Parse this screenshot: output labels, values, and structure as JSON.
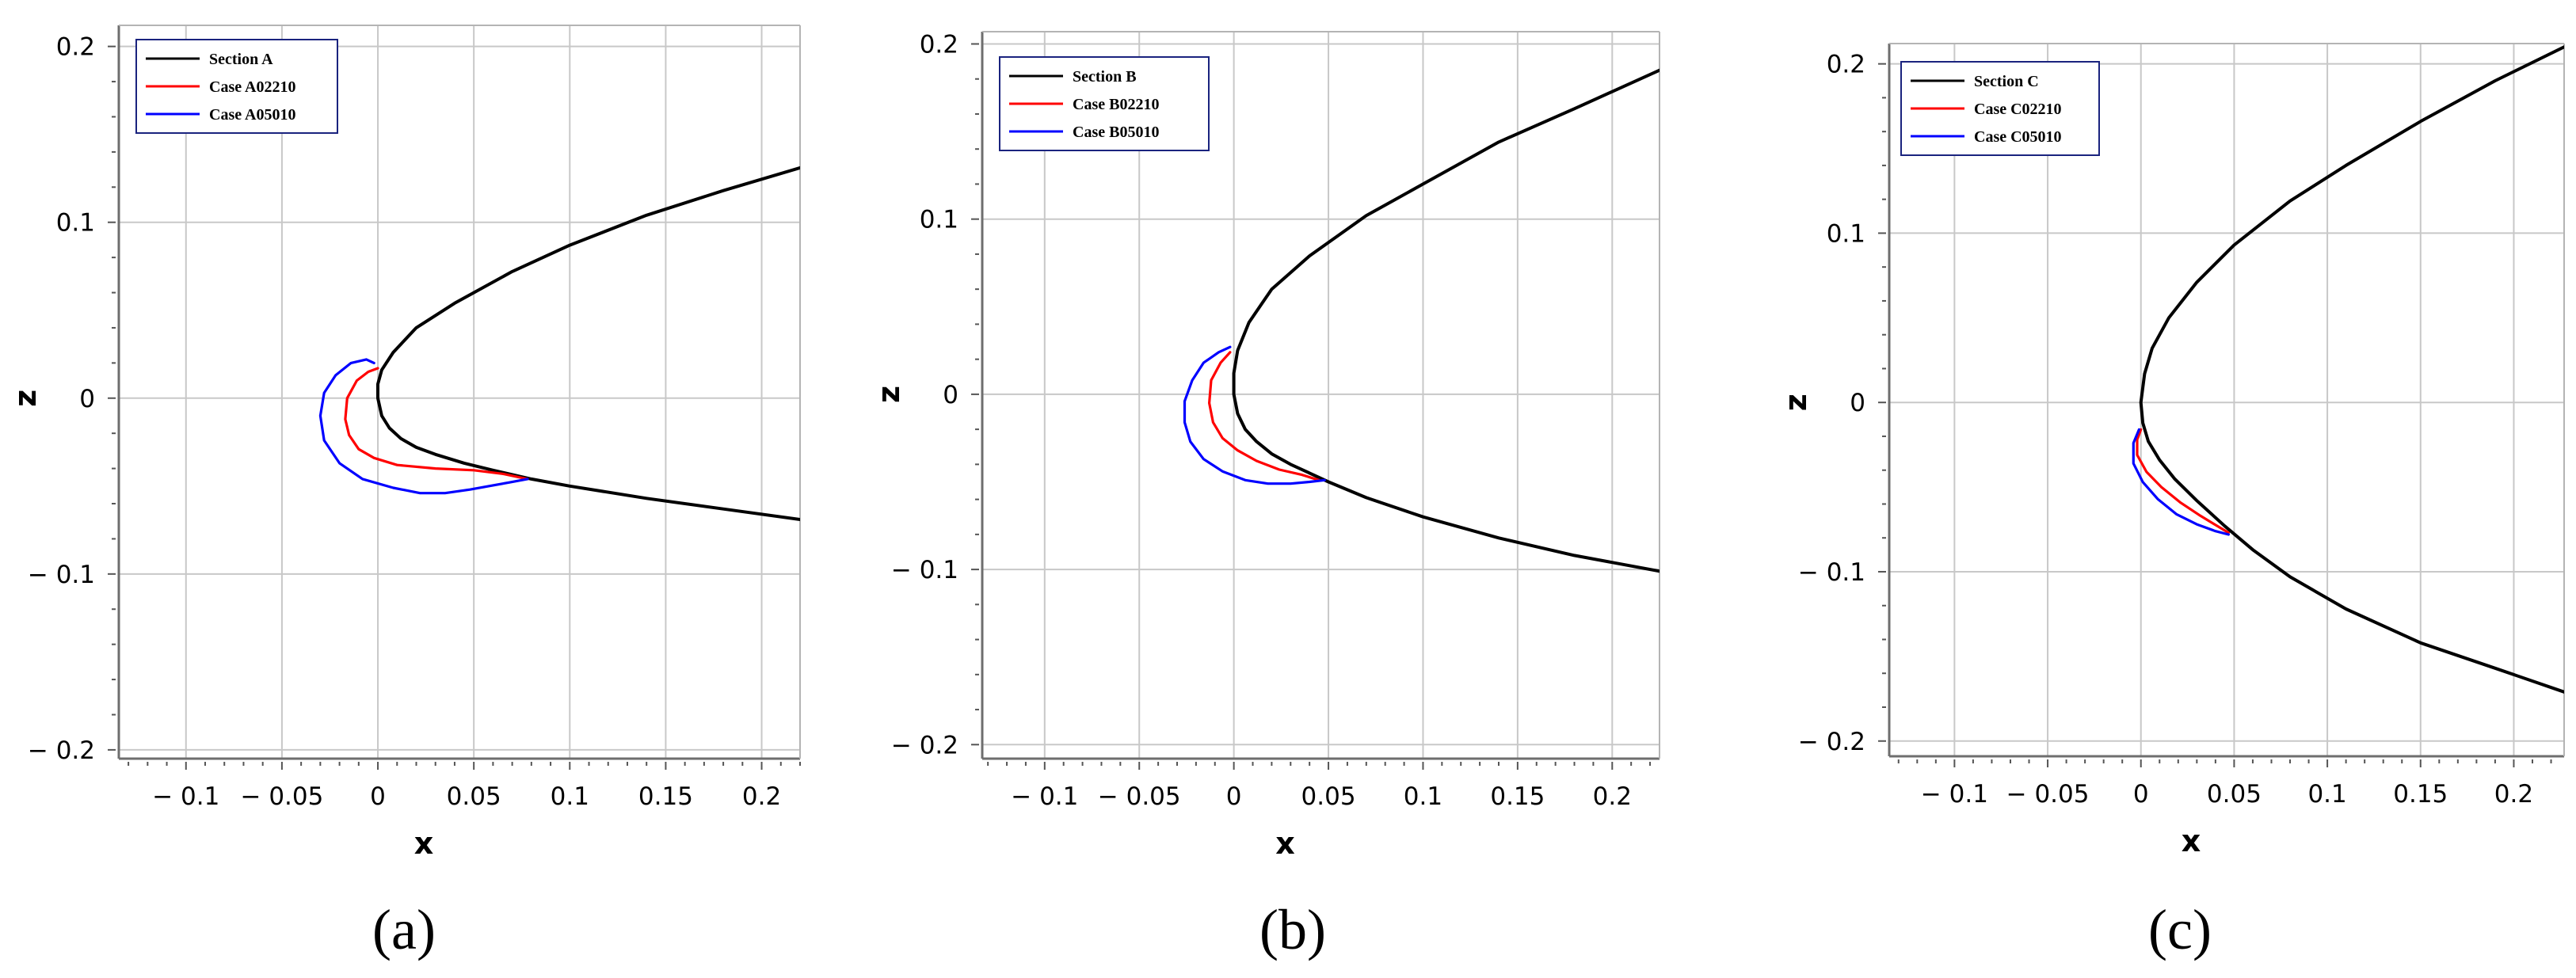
{
  "chart_data": [
    {
      "type": "line",
      "panel_label": "(a)",
      "xlabel": "x",
      "ylabel": "z",
      "xlim": [
        -0.135,
        0.22
      ],
      "ylim": [
        -0.205,
        0.212
      ],
      "x_ticks": [
        -0.1,
        -0.05,
        0,
        0.05,
        0.1,
        0.15,
        0.2
      ],
      "x_tick_labels": [
        "− 0.1",
        "− 0.05",
        "0",
        "0.05",
        "0.1",
        "0.15",
        "0.2"
      ],
      "y_ticks": [
        0.2,
        0.1,
        0,
        -0.1,
        -0.2
      ],
      "y_tick_labels": [
        "0.2",
        "0.1",
        "0",
        "− 0.1",
        "− 0.2"
      ],
      "grid": true,
      "legend_position": "top-left",
      "series": [
        {
          "name": "Section A",
          "color": "#000000",
          "x": [
            0.22,
            0.18,
            0.14,
            0.1,
            0.07,
            0.04,
            0.02,
            0.008,
            0.002,
            0.0,
            0.0,
            0.002,
            0.006,
            0.012,
            0.02,
            0.03,
            0.045,
            0.06,
            0.08,
            0.1,
            0.14,
            0.18,
            0.22
          ],
          "y": [
            0.131,
            0.118,
            0.104,
            0.087,
            0.072,
            0.054,
            0.04,
            0.026,
            0.016,
            0.008,
            0.0,
            -0.01,
            -0.017,
            -0.023,
            -0.028,
            -0.032,
            -0.037,
            -0.041,
            -0.046,
            -0.05,
            -0.057,
            -0.063,
            -0.069
          ]
        },
        {
          "name": "Case A02210",
          "color": "#ff0000",
          "x": [
            0.0,
            -0.005,
            -0.011,
            -0.016,
            -0.017,
            -0.015,
            -0.01,
            -0.002,
            0.01,
            0.03,
            0.05,
            0.065,
            0.078
          ],
          "y": [
            0.017,
            0.015,
            0.01,
            0.0,
            -0.012,
            -0.021,
            -0.029,
            -0.034,
            -0.038,
            -0.04,
            -0.041,
            -0.043,
            -0.046
          ]
        },
        {
          "name": "Case A05010",
          "color": "#0000ff",
          "x": [
            -0.002,
            -0.006,
            -0.014,
            -0.022,
            -0.028,
            -0.03,
            -0.028,
            -0.02,
            -0.008,
            0.008,
            0.022,
            0.035,
            0.048,
            0.058,
            0.068,
            0.078
          ],
          "y": [
            0.02,
            0.022,
            0.02,
            0.013,
            0.003,
            -0.01,
            -0.024,
            -0.037,
            -0.046,
            -0.051,
            -0.054,
            -0.054,
            -0.052,
            -0.05,
            -0.048,
            -0.046
          ]
        }
      ]
    },
    {
      "type": "line",
      "panel_label": "(b)",
      "xlabel": "x",
      "ylabel": "z",
      "xlim": [
        -0.133,
        0.225
      ],
      "ylim": [
        -0.208,
        0.207
      ],
      "x_ticks": [
        -0.1,
        -0.05,
        0,
        0.05,
        0.1,
        0.15,
        0.2
      ],
      "x_tick_labels": [
        "− 0.1",
        "− 0.05",
        "0",
        "0.05",
        "0.1",
        "0.15",
        "0.2"
      ],
      "y_ticks": [
        0.2,
        0.1,
        0,
        -0.1,
        -0.2
      ],
      "y_tick_labels": [
        "0.2",
        "0.1",
        "0",
        "− 0.1",
        "− 0.2"
      ],
      "grid": true,
      "legend_position": "top-left",
      "series": [
        {
          "name": "Section B",
          "color": "#000000",
          "x": [
            0.225,
            0.18,
            0.14,
            0.1,
            0.07,
            0.04,
            0.02,
            0.008,
            0.002,
            0.0,
            0.0,
            0.002,
            0.006,
            0.012,
            0.02,
            0.03,
            0.04,
            0.05,
            0.07,
            0.1,
            0.14,
            0.18,
            0.225
          ],
          "y": [
            0.185,
            0.163,
            0.144,
            0.12,
            0.102,
            0.079,
            0.06,
            0.041,
            0.025,
            0.012,
            0.0,
            -0.011,
            -0.02,
            -0.027,
            -0.034,
            -0.04,
            -0.045,
            -0.05,
            -0.059,
            -0.07,
            -0.082,
            -0.092,
            -0.101
          ]
        },
        {
          "name": "Case B02210",
          "color": "#ff0000",
          "x": [
            -0.002,
            -0.007,
            -0.012,
            -0.013,
            -0.011,
            -0.006,
            0.002,
            0.012,
            0.024,
            0.036,
            0.045
          ],
          "y": [
            0.024,
            0.018,
            0.008,
            -0.005,
            -0.016,
            -0.025,
            -0.032,
            -0.038,
            -0.043,
            -0.046,
            -0.049
          ]
        },
        {
          "name": "Case B05010",
          "color": "#0000ff",
          "x": [
            -0.002,
            -0.008,
            -0.016,
            -0.022,
            -0.026,
            -0.026,
            -0.023,
            -0.016,
            -0.006,
            0.006,
            0.018,
            0.03,
            0.04,
            0.048
          ],
          "y": [
            0.027,
            0.024,
            0.018,
            0.008,
            -0.004,
            -0.016,
            -0.027,
            -0.037,
            -0.044,
            -0.049,
            -0.051,
            -0.051,
            -0.05,
            -0.049
          ]
        }
      ]
    },
    {
      "type": "line",
      "panel_label": "(c)",
      "xlabel": "x",
      "ylabel": "z",
      "xlim": [
        -0.135,
        0.227
      ],
      "ylim": [
        -0.209,
        0.212
      ],
      "x_ticks": [
        -0.1,
        -0.05,
        0,
        0.05,
        0.1,
        0.15,
        0.2
      ],
      "x_tick_labels": [
        "− 0.1",
        "− 0.05",
        "0",
        "0.05",
        "0.1",
        "0.15",
        "0.2"
      ],
      "y_ticks": [
        0.2,
        0.1,
        0,
        -0.1,
        -0.2
      ],
      "y_tick_labels": [
        "0.2",
        "0.1",
        "0",
        "− 0.1",
        "− 0.2"
      ],
      "grid": true,
      "legend_position": "top-left",
      "series": [
        {
          "name": "Section C",
          "color": "#000000",
          "x": [
            0.227,
            0.19,
            0.15,
            0.11,
            0.08,
            0.05,
            0.03,
            0.015,
            0.006,
            0.002,
            0.0,
            0.001,
            0.004,
            0.01,
            0.018,
            0.03,
            0.045,
            0.06,
            0.08,
            0.11,
            0.15,
            0.19,
            0.227
          ],
          "y": [
            0.21,
            0.19,
            0.166,
            0.14,
            0.119,
            0.093,
            0.071,
            0.05,
            0.032,
            0.017,
            0.0,
            -0.012,
            -0.023,
            -0.034,
            -0.045,
            -0.058,
            -0.073,
            -0.087,
            -0.103,
            -0.122,
            -0.142,
            -0.157,
            -0.171
          ]
        },
        {
          "name": "Case C02210",
          "color": "#ff0000",
          "x": [
            0.0,
            -0.002,
            -0.002,
            0.003,
            0.011,
            0.021,
            0.032,
            0.041,
            0.047
          ],
          "y": [
            -0.016,
            -0.022,
            -0.031,
            -0.041,
            -0.05,
            -0.059,
            -0.067,
            -0.073,
            -0.077
          ]
        },
        {
          "name": "Case C05010",
          "color": "#0000ff",
          "x": [
            -0.001,
            -0.004,
            -0.004,
            0.001,
            0.009,
            0.019,
            0.03,
            0.04,
            0.047
          ],
          "y": [
            -0.016,
            -0.024,
            -0.036,
            -0.047,
            -0.057,
            -0.066,
            -0.072,
            -0.076,
            -0.078
          ]
        }
      ]
    }
  ]
}
